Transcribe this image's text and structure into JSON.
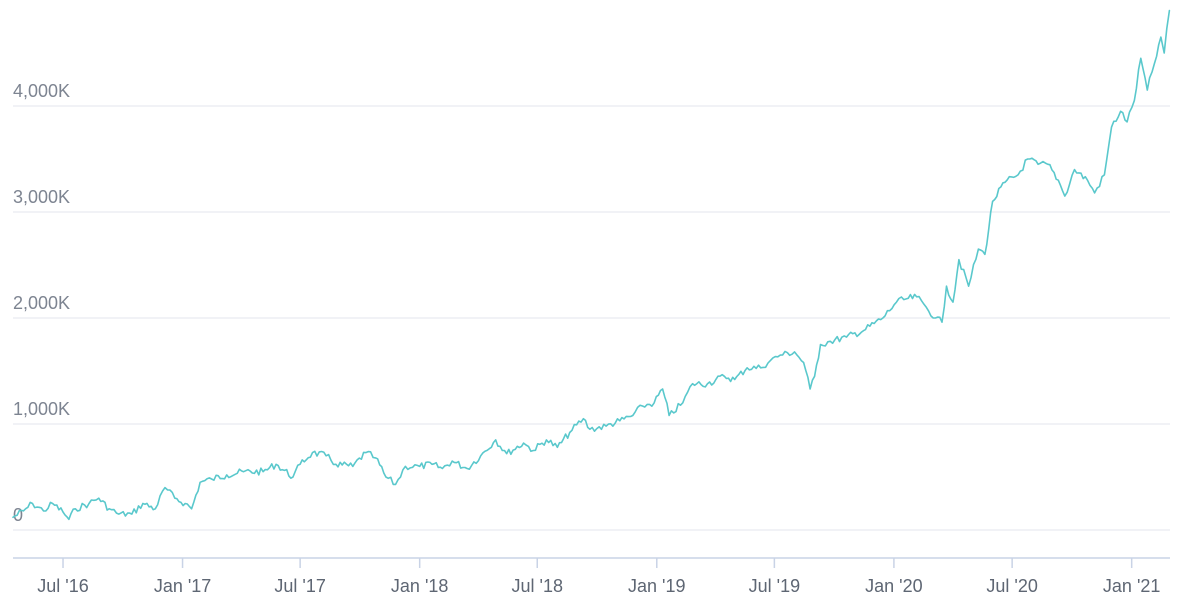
{
  "chart_data": {
    "type": "line",
    "title": "",
    "xlabel": "",
    "ylabel": "",
    "x_tick_labels": [
      "Jul '16",
      "Jan '17",
      "Jul '17",
      "Jan '18",
      "Jul '18",
      "Jan '19",
      "Jul '19",
      "Jan '20",
      "Jul '20",
      "Jan '21"
    ],
    "y_tick_labels": [
      "0",
      "1,000K",
      "2,000K",
      "3,000K",
      "4,000K"
    ],
    "y_ticks": [
      0,
      1000000,
      2000000,
      3000000,
      4000000
    ],
    "ylim": [
      0,
      5000000
    ],
    "xlim": [
      "2016-04-15",
      "2021-03-01"
    ],
    "grid": true,
    "legend": "none",
    "series": [
      {
        "color": "#5ac8cc",
        "points": [
          [
            "2016-04-15",
            120000
          ],
          [
            "2016-05-01",
            180000
          ],
          [
            "2016-05-15",
            250000
          ],
          [
            "2016-06-01",
            180000
          ],
          [
            "2016-06-15",
            250000
          ],
          [
            "2016-07-01",
            170000
          ],
          [
            "2016-07-10",
            100000
          ],
          [
            "2016-07-20",
            200000
          ],
          [
            "2016-08-10",
            250000
          ],
          [
            "2016-08-25",
            300000
          ],
          [
            "2016-09-10",
            200000
          ],
          [
            "2016-09-25",
            150000
          ],
          [
            "2016-10-15",
            150000
          ],
          [
            "2016-11-01",
            250000
          ],
          [
            "2016-11-20",
            200000
          ],
          [
            "2016-12-05",
            400000
          ],
          [
            "2016-12-20",
            300000
          ],
          [
            "2017-01-05",
            250000
          ],
          [
            "2017-01-15",
            200000
          ],
          [
            "2017-01-28",
            450000
          ],
          [
            "2017-02-15",
            480000
          ],
          [
            "2017-03-10",
            520000
          ],
          [
            "2017-04-05",
            550000
          ],
          [
            "2017-05-05",
            550000
          ],
          [
            "2017-05-25",
            620000
          ],
          [
            "2017-06-20",
            500000
          ],
          [
            "2017-07-01",
            620000
          ],
          [
            "2017-07-20",
            730000
          ],
          [
            "2017-08-10",
            700000
          ],
          [
            "2017-08-25",
            620000
          ],
          [
            "2017-09-20",
            600000
          ],
          [
            "2017-10-10",
            730000
          ],
          [
            "2017-10-25",
            680000
          ],
          [
            "2017-11-10",
            500000
          ],
          [
            "2017-11-25",
            430000
          ],
          [
            "2017-12-10",
            600000
          ],
          [
            "2018-01-01",
            600000
          ],
          [
            "2018-01-20",
            620000
          ],
          [
            "2018-02-05",
            580000
          ],
          [
            "2018-02-20",
            650000
          ],
          [
            "2018-03-15",
            580000
          ],
          [
            "2018-04-05",
            700000
          ],
          [
            "2018-04-28",
            850000
          ],
          [
            "2018-05-15",
            720000
          ],
          [
            "2018-06-10",
            820000
          ],
          [
            "2018-06-25",
            750000
          ],
          [
            "2018-07-15",
            850000
          ],
          [
            "2018-08-01",
            780000
          ],
          [
            "2018-08-20",
            920000
          ],
          [
            "2018-09-10",
            1050000
          ],
          [
            "2018-09-20",
            950000
          ],
          [
            "2018-10-15",
            980000
          ],
          [
            "2018-11-05",
            1030000
          ],
          [
            "2018-11-25",
            1080000
          ],
          [
            "2018-12-10",
            1170000
          ],
          [
            "2018-12-28",
            1200000
          ],
          [
            "2019-01-10",
            1330000
          ],
          [
            "2019-01-20",
            1080000
          ],
          [
            "2019-02-10",
            1200000
          ],
          [
            "2019-02-25",
            1380000
          ],
          [
            "2019-03-20",
            1380000
          ],
          [
            "2019-04-15",
            1450000
          ],
          [
            "2019-05-01",
            1420000
          ],
          [
            "2019-05-20",
            1530000
          ],
          [
            "2019-06-10",
            1530000
          ],
          [
            "2019-06-25",
            1600000
          ],
          [
            "2019-07-10",
            1650000
          ],
          [
            "2019-08-01",
            1680000
          ],
          [
            "2019-08-15",
            1580000
          ],
          [
            "2019-08-25",
            1330000
          ],
          [
            "2019-09-01",
            1450000
          ],
          [
            "2019-09-10",
            1750000
          ],
          [
            "2019-09-25",
            1780000
          ],
          [
            "2019-10-20",
            1820000
          ],
          [
            "2019-11-15",
            1880000
          ],
          [
            "2019-12-15",
            2000000
          ],
          [
            "2020-01-05",
            2150000
          ],
          [
            "2020-01-20",
            2180000
          ],
          [
            "2020-02-05",
            2200000
          ],
          [
            "2020-02-20",
            2100000
          ],
          [
            "2020-03-05",
            2000000
          ],
          [
            "2020-03-15",
            1960000
          ],
          [
            "2020-03-22",
            2300000
          ],
          [
            "2020-04-01",
            2150000
          ],
          [
            "2020-04-10",
            2550000
          ],
          [
            "2020-04-25",
            2300000
          ],
          [
            "2020-05-10",
            2650000
          ],
          [
            "2020-05-20",
            2600000
          ],
          [
            "2020-06-01",
            3100000
          ],
          [
            "2020-06-20",
            3280000
          ],
          [
            "2020-07-10",
            3350000
          ],
          [
            "2020-07-25",
            3500000
          ],
          [
            "2020-08-10",
            3450000
          ],
          [
            "2020-08-25",
            3450000
          ],
          [
            "2020-09-10",
            3300000
          ],
          [
            "2020-09-20",
            3150000
          ],
          [
            "2020-10-05",
            3400000
          ],
          [
            "2020-10-25",
            3300000
          ],
          [
            "2020-11-05",
            3180000
          ],
          [
            "2020-11-20",
            3350000
          ],
          [
            "2020-12-01",
            3800000
          ],
          [
            "2020-12-15",
            3950000
          ],
          [
            "2020-12-25",
            3850000
          ],
          [
            "2021-01-05",
            4050000
          ],
          [
            "2021-01-15",
            4450000
          ],
          [
            "2021-01-25",
            4150000
          ],
          [
            "2021-02-05",
            4400000
          ],
          [
            "2021-02-15",
            4650000
          ],
          [
            "2021-02-20",
            4500000
          ],
          [
            "2021-02-28",
            4900000
          ]
        ]
      }
    ]
  }
}
